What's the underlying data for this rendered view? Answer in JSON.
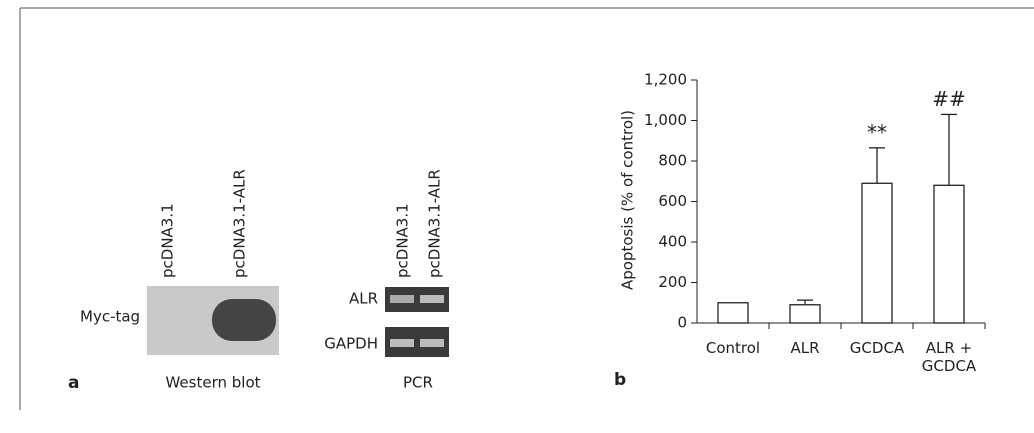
{
  "panel_a": {
    "label": "a",
    "western": {
      "lanes": [
        "pcDNA3.1",
        "pcDNA3.1-ALR"
      ],
      "row_label": "Myc-tag",
      "caption": "Western blot"
    },
    "pcr": {
      "lanes": [
        "pcDNA3.1",
        "pcDNA3.1-ALR"
      ],
      "row_labels": [
        "ALR",
        "GAPDH"
      ],
      "caption": "PCR"
    }
  },
  "chart_data": {
    "type": "bar",
    "panel_label": "b",
    "ylabel": "Apoptosis (% of control)",
    "categories": [
      "Control",
      "ALR",
      "GCDCA",
      "ALR + GCDCA"
    ],
    "values": [
      100,
      90,
      690,
      680
    ],
    "errors": [
      null,
      23,
      175,
      350
    ],
    "annotations": [
      null,
      null,
      "**",
      "##"
    ],
    "color": "#ffffff",
    "ylim": [
      0,
      1200
    ],
    "yticks": [
      0,
      200,
      400,
      600,
      800,
      {
        "value": 1000,
        "label": "1,000"
      },
      {
        "value": 1200,
        "label": "1,200"
      }
    ]
  }
}
